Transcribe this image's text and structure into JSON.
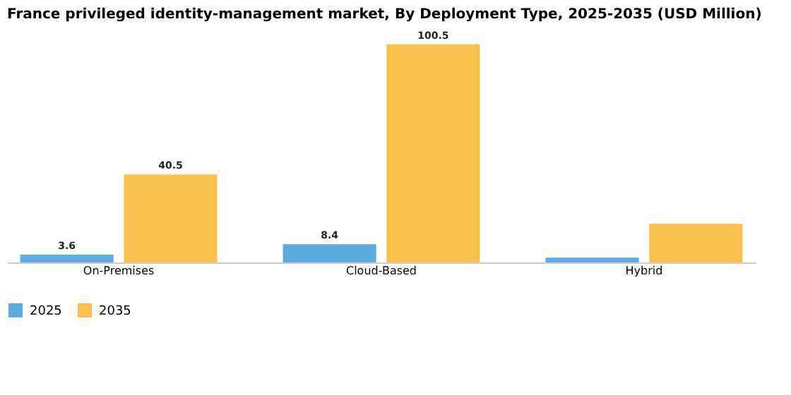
{
  "chart_data": {
    "type": "bar",
    "title": "France privileged identity-management market, By Deployment Type, 2025-2035 (USD Million)",
    "categories": [
      "On-Premises",
      "Cloud-Based",
      "Hybrid"
    ],
    "series": [
      {
        "name": "2025",
        "color": "#5dade2",
        "values": [
          3.6,
          8.4,
          2.2
        ],
        "value_labels": [
          "3.6",
          "8.4",
          null
        ]
      },
      {
        "name": "2035",
        "color": "#f7c14c",
        "values": [
          40.5,
          100.5,
          17.8
        ],
        "value_labels": [
          "40.5",
          "100.5",
          null
        ]
      }
    ],
    "legend": "bottom",
    "grid": false
  }
}
